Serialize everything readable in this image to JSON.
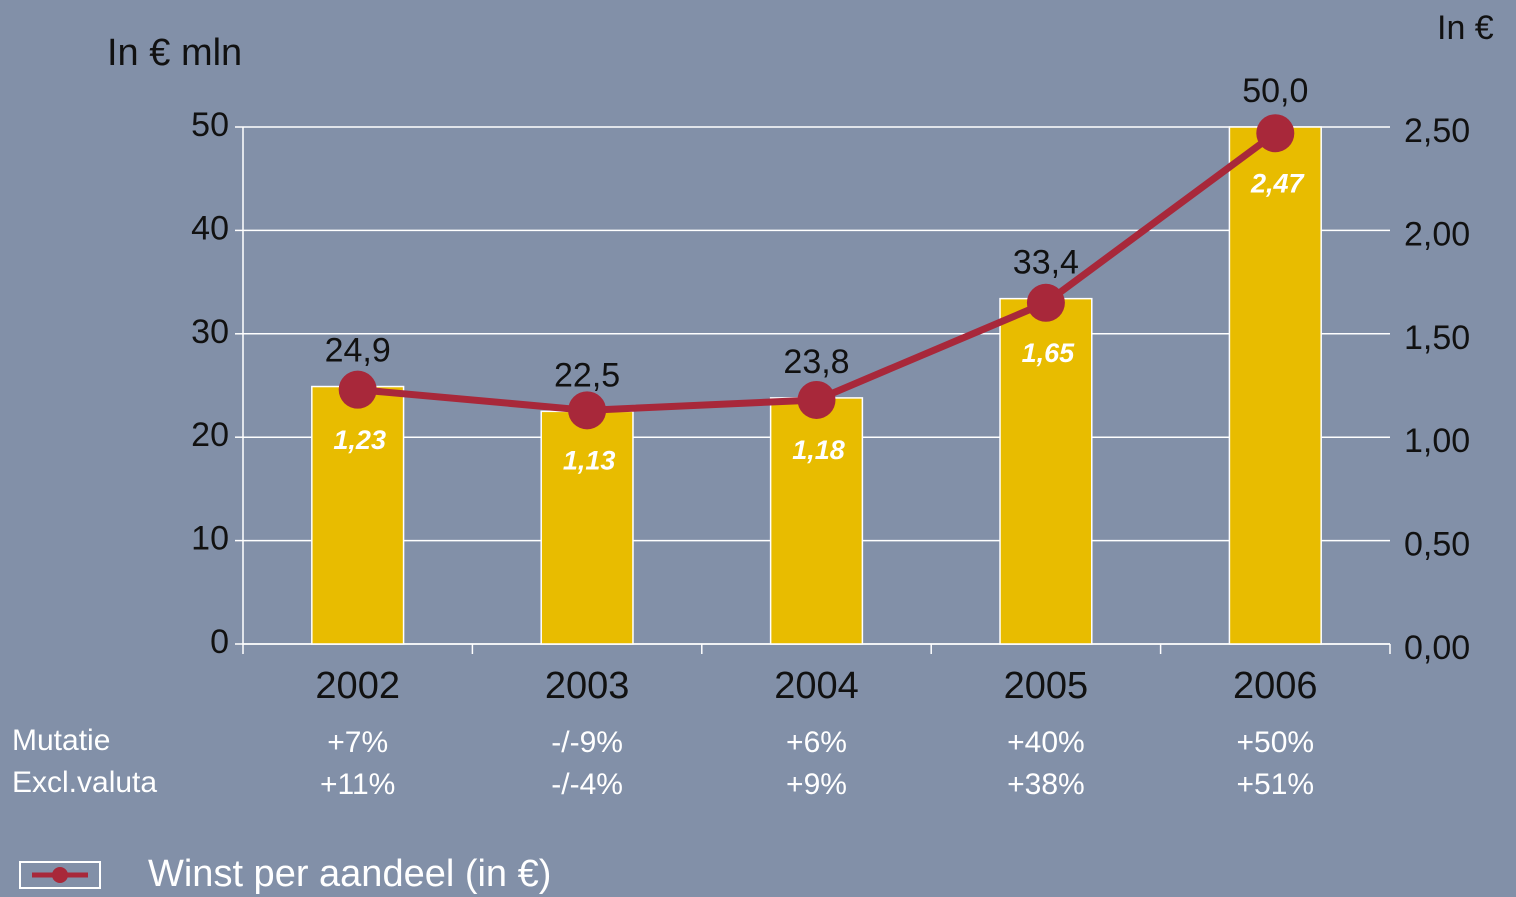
{
  "chart_data": {
    "type": "bar",
    "ylabel": "In € mln",
    "y2label": "In €",
    "categories": [
      "2002",
      "2003",
      "2004",
      "2005",
      "2006"
    ],
    "series": [
      {
        "type": "bar",
        "color": "#e8bc00",
        "values": [
          24.9,
          22.5,
          23.8,
          33.4,
          50.0
        ],
        "value_labels": [
          "24,9",
          "22,5",
          "23,8",
          "33,4",
          "50,0"
        ]
      },
      {
        "type": "line",
        "name": "Winst per aandeel (in €)",
        "axis": "y2",
        "color": "#a8283a",
        "values": [
          1.23,
          1.13,
          1.18,
          1.65,
          2.47
        ],
        "value_labels": [
          "1,23",
          "1,13",
          "1,18",
          "1,65",
          "2,47"
        ]
      }
    ],
    "ylim": [
      0,
      50
    ],
    "yticks": [
      0,
      10,
      20,
      30,
      40,
      50
    ],
    "y2lim": [
      0,
      2.5
    ],
    "y2ticks": [
      {
        "value": 0,
        "label": "0,00"
      },
      {
        "value": 0.5,
        "label": "0,50"
      },
      {
        "value": 1,
        "label": "1,00"
      },
      {
        "value": 1.5,
        "label": "1,50"
      },
      {
        "value": 2,
        "label": "2,00"
      },
      {
        "value": 2.5,
        "label": "2,50"
      }
    ],
    "grid": true,
    "rows": [
      {
        "label": "Mutatie",
        "values": [
          "+7%",
          "-/-9%",
          "+6%",
          "+40%",
          "+50%"
        ]
      },
      {
        "label": "Excl.valuta",
        "values": [
          "+11%",
          "-/-4%",
          "+9%",
          "+38%",
          "+51%"
        ]
      }
    ]
  }
}
